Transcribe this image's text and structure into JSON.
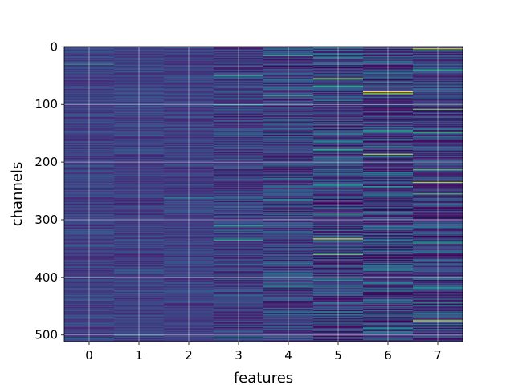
{
  "chart_data": {
    "type": "heatmap",
    "title": "",
    "xlabel": "features",
    "ylabel": "channels",
    "x_categories": [
      0,
      1,
      2,
      3,
      4,
      5,
      6,
      7
    ],
    "xticks": [
      "0",
      "1",
      "2",
      "3",
      "4",
      "5",
      "6",
      "7"
    ],
    "yticks": [
      "0",
      "100",
      "200",
      "300",
      "400",
      "500"
    ],
    "ylim": [
      511.5,
      -0.5
    ],
    "n_rows": 512,
    "n_cols": 8,
    "grid": true,
    "colormap": "viridis",
    "column_noise_level": [
      0.1,
      0.1,
      0.1,
      0.16,
      0.2,
      0.26,
      0.26,
      0.22
    ],
    "bright_rows": [
      {
        "feature": 0,
        "channel": 30,
        "value": 0.55
      },
      {
        "feature": 0,
        "channel": 505,
        "value": 0.45
      },
      {
        "feature": 1,
        "channel": 500,
        "value": 0.5
      },
      {
        "feature": 2,
        "channel": 262,
        "value": 0.5
      },
      {
        "feature": 3,
        "channel": 50,
        "value": 0.55
      },
      {
        "feature": 3,
        "channel": 100,
        "value": 0.5
      },
      {
        "feature": 3,
        "channel": 310,
        "value": 0.55
      },
      {
        "feature": 3,
        "channel": 335,
        "value": 0.6
      },
      {
        "feature": 3,
        "channel": 505,
        "value": 0.5
      },
      {
        "feature": 4,
        "channel": 15,
        "value": 0.6
      },
      {
        "feature": 4,
        "channel": 85,
        "value": 0.6
      },
      {
        "feature": 4,
        "channel": 265,
        "value": 0.5
      },
      {
        "feature": 4,
        "channel": 415,
        "value": 0.55
      },
      {
        "feature": 5,
        "channel": 55,
        "value": 0.85
      },
      {
        "feature": 5,
        "channel": 68,
        "value": 0.6
      },
      {
        "feature": 5,
        "channel": 178,
        "value": 0.6
      },
      {
        "feature": 5,
        "channel": 240,
        "value": 0.55
      },
      {
        "feature": 5,
        "channel": 290,
        "value": 0.6
      },
      {
        "feature": 5,
        "channel": 333,
        "value": 0.95
      },
      {
        "feature": 5,
        "channel": 360,
        "value": 0.75
      },
      {
        "feature": 5,
        "channel": 405,
        "value": 0.5
      },
      {
        "feature": 6,
        "channel": 78,
        "value": 1.0
      },
      {
        "feature": 6,
        "channel": 81,
        "value": 0.8
      },
      {
        "feature": 6,
        "channel": 145,
        "value": 0.6
      },
      {
        "feature": 6,
        "channel": 186,
        "value": 0.85
      },
      {
        "feature": 6,
        "channel": 242,
        "value": 0.55
      },
      {
        "feature": 6,
        "channel": 488,
        "value": 0.5
      },
      {
        "feature": 7,
        "channel": 3,
        "value": 0.9
      },
      {
        "feature": 7,
        "channel": 40,
        "value": 0.6
      },
      {
        "feature": 7,
        "channel": 108,
        "value": 0.75
      },
      {
        "feature": 7,
        "channel": 148,
        "value": 0.7
      },
      {
        "feature": 7,
        "channel": 213,
        "value": 0.7
      },
      {
        "feature": 7,
        "channel": 235,
        "value": 0.85
      },
      {
        "feature": 7,
        "channel": 255,
        "value": 0.7
      },
      {
        "feature": 7,
        "channel": 340,
        "value": 0.55
      },
      {
        "feature": 7,
        "channel": 418,
        "value": 0.55
      },
      {
        "feature": 7,
        "channel": 443,
        "value": 0.6
      },
      {
        "feature": 7,
        "channel": 475,
        "value": 0.95
      }
    ],
    "dark_rows": [
      {
        "feature": 5,
        "channel": 140,
        "value": 0.0
      },
      {
        "feature": 5,
        "channel": 372,
        "value": 0.0
      },
      {
        "feature": 5,
        "channel": 485,
        "value": 0.05
      },
      {
        "feature": 6,
        "channel": 95,
        "value": 0.05
      },
      {
        "feature": 6,
        "channel": 205,
        "value": 0.05
      },
      {
        "feature": 7,
        "channel": 440,
        "value": 0.05
      }
    ]
  }
}
